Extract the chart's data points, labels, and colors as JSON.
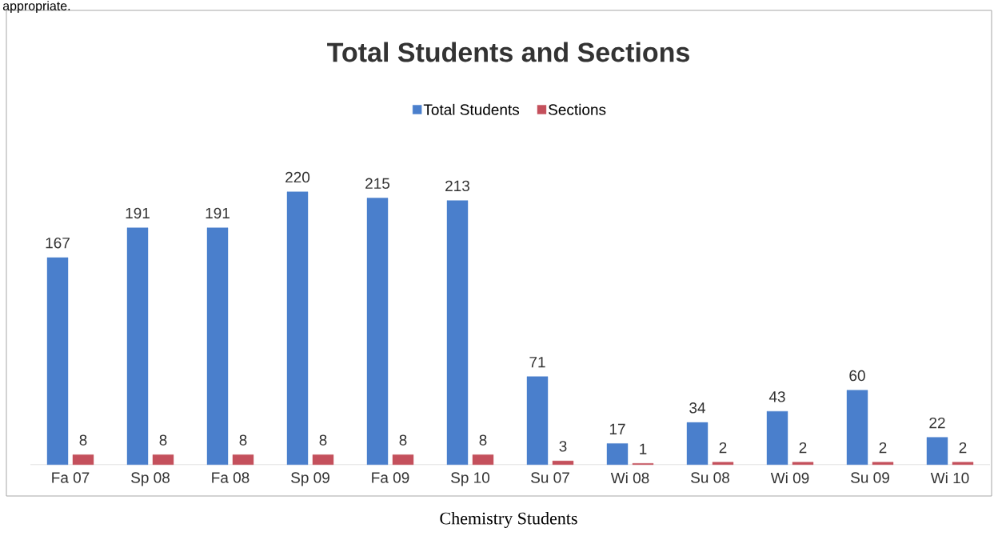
{
  "chart_data": {
    "type": "bar",
    "title": "Total Students and Sections",
    "categories": [
      "Fa 07",
      "Sp 08",
      "Fa 08",
      "Sp 09",
      "Fa 09",
      "Sp 10",
      "Su 07",
      "Wi 08",
      "Su 08",
      "Wi 09",
      "Su 09",
      "Wi 10"
    ],
    "series": [
      {
        "name": "Total Students",
        "color": "#4a7fcc",
        "values": [
          167,
          191,
          191,
          220,
          215,
          213,
          71,
          17,
          34,
          43,
          60,
          22
        ]
      },
      {
        "name": "Sections",
        "color": "#c4505c",
        "values": [
          8,
          8,
          8,
          8,
          8,
          8,
          3,
          1,
          2,
          2,
          2,
          2
        ]
      }
    ],
    "data_labels": true,
    "legend": "top",
    "annotations": [
      "appropriate.",
      "Chemistry Students"
    ]
  }
}
